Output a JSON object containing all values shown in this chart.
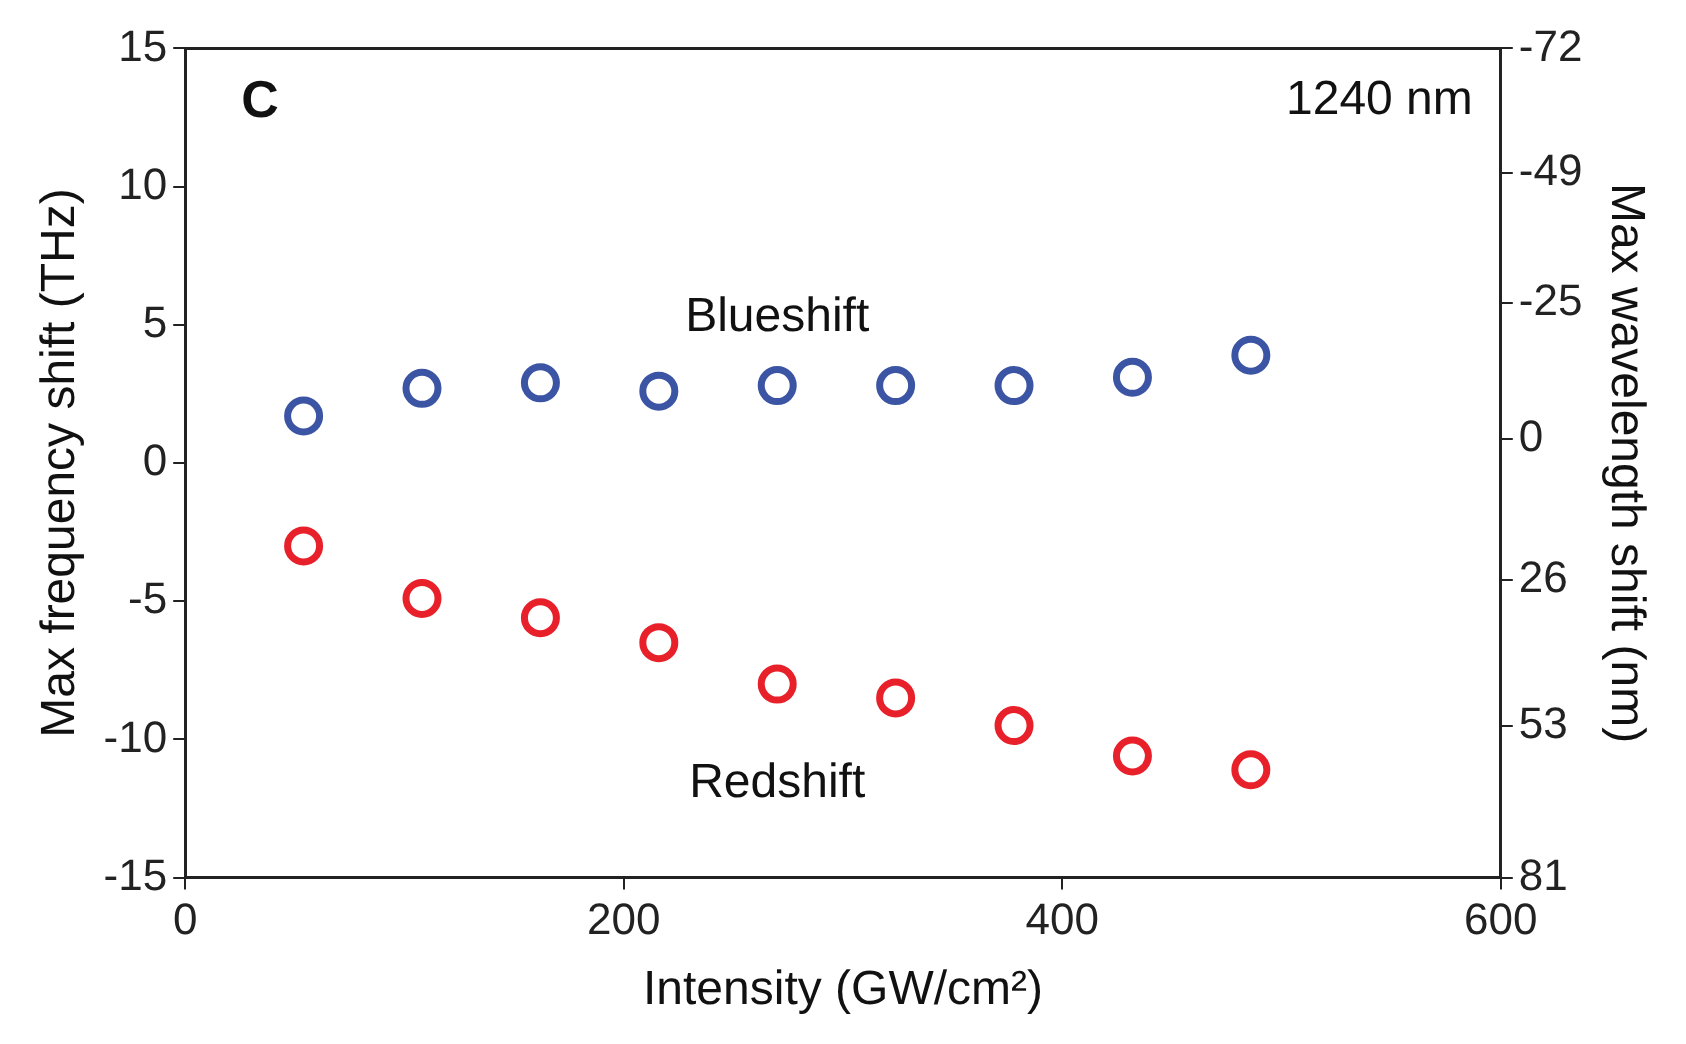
{
  "chart_data": {
    "type": "scatter",
    "xlabel": "Intensity (GW/cm²)",
    "ylabel": "Max frequency shift (THz)",
    "y2label": "Max wavelength shift (nm)",
    "annotations": [
      "C",
      "1240 nm"
    ],
    "x": [
      54,
      108,
      162,
      216,
      270,
      324,
      378,
      432,
      486
    ],
    "series": [
      {
        "name": "Blueshift",
        "color": "#3b54a4",
        "values": [
          1.7,
          2.7,
          2.9,
          2.6,
          2.8,
          2.8,
          2.8,
          3.1,
          3.9
        ]
      },
      {
        "name": "Redshift",
        "color": "#e8202a",
        "values": [
          -3.0,
          -4.9,
          -5.6,
          -6.5,
          -8.0,
          -8.5,
          -9.5,
          -10.6,
          -11.1
        ]
      }
    ],
    "xlim": [
      0,
      600
    ],
    "xticks": [
      0,
      200,
      400,
      600
    ],
    "ylim": [
      -15,
      15
    ],
    "yticks": [
      -15,
      -10,
      -5,
      0,
      5,
      10,
      15
    ],
    "y2lim": [
      81,
      -72
    ],
    "y2ticks": [
      -72,
      -49,
      -25,
      0,
      26,
      53,
      81
    ],
    "marker": "circle",
    "grid": false,
    "legend": false
  }
}
